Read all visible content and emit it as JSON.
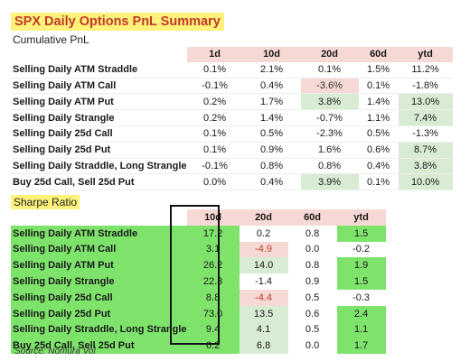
{
  "title": "SPX Daily Options PnL Summary",
  "subtitle": "Cumulative PnL",
  "sharpe_title": "Sharpe Ratio",
  "source": "Source: Nomura Vol",
  "chart_data": [
    {
      "type": "table",
      "title": "Cumulative PnL",
      "columns": [
        "",
        "1d",
        "10d",
        "20d",
        "60d",
        "ytd"
      ],
      "rows": [
        [
          "Selling Daily ATM Straddle",
          "0.1%",
          "2.1%",
          "0.1%",
          "1.5%",
          "11.2%"
        ],
        [
          "Selling Daily ATM Call",
          "-0.1%",
          "0.4%",
          "-3.6%",
          "0.1%",
          "-1.8%"
        ],
        [
          "Selling Daily ATM Put",
          "0.2%",
          "1.7%",
          "3.8%",
          "1.4%",
          "13.0%"
        ],
        [
          "Selling Daily Strangle",
          "0.2%",
          "1.4%",
          "-0.7%",
          "1.1%",
          "7.4%"
        ],
        [
          "Selling Daily 25d Call",
          "0.1%",
          "0.5%",
          "-2.3%",
          "0.5%",
          "-1.3%"
        ],
        [
          "Selling Daily 25d Put",
          "0.1%",
          "0.9%",
          "1.6%",
          "0.6%",
          "8.7%"
        ],
        [
          "Selling Daily Straddle, Long Strangle",
          "-0.1%",
          "0.8%",
          "0.8%",
          "0.4%",
          "3.8%"
        ],
        [
          "Buy 25d Call, Sell 25d Put",
          "0.0%",
          "0.4%",
          "3.9%",
          "0.1%",
          "10.0%"
        ]
      ],
      "cell_fill": [
        [
          "",
          "",
          "",
          "",
          ""
        ],
        [
          "",
          "",
          "neg",
          "",
          ""
        ],
        [
          "",
          "",
          "pos",
          "",
          "pos"
        ],
        [
          "",
          "",
          "",
          "",
          "pos"
        ],
        [
          "",
          "",
          "",
          "",
          ""
        ],
        [
          "",
          "",
          "",
          "",
          "pos"
        ],
        [
          "",
          "",
          "",
          "",
          "pos"
        ],
        [
          "",
          "",
          "pos",
          "",
          "pos"
        ]
      ]
    },
    {
      "type": "table",
      "title": "Sharpe Ratio",
      "columns": [
        "",
        "10d",
        "20d",
        "60d",
        "ytd"
      ],
      "rows": [
        [
          "Selling Daily ATM Straddle",
          "17.2",
          "0.2",
          "0.8",
          "1.5"
        ],
        [
          "Selling Daily ATM Call",
          "3.1",
          "-4.9",
          "0.0",
          "-0.2"
        ],
        [
          "Selling Daily ATM Put",
          "26.2",
          "14.0",
          "0.8",
          "1.9"
        ],
        [
          "Selling Daily Strangle",
          "22.3",
          "-1.4",
          "0.9",
          "1.5"
        ],
        [
          "Selling Daily 25d Call",
          "8.8",
          "-4.4",
          "0.5",
          "-0.3"
        ],
        [
          "Selling Daily 25d Put",
          "73.0",
          "13.5",
          "0.6",
          "2.4"
        ],
        [
          "Selling Daily Straddle, Long Strangle",
          "9.4",
          "4.1",
          "0.5",
          "1.1"
        ],
        [
          "Buy 25d Call, Sell 25d Put",
          "6.2",
          "6.8",
          "0.0",
          "1.7"
        ]
      ],
      "cell_fill": [
        [
          "g",
          "",
          "",
          "g"
        ],
        [
          "g",
          "pk",
          "",
          ""
        ],
        [
          "g",
          "lg",
          "",
          "g"
        ],
        [
          "g",
          "",
          "",
          "g"
        ],
        [
          "g",
          "pk",
          "",
          ""
        ],
        [
          "g",
          "lg",
          "",
          "g"
        ],
        [
          "g",
          "lg",
          "",
          "g"
        ],
        [
          "g",
          "lg",
          "",
          "g"
        ]
      ],
      "highlighted_column": "10d",
      "colors": {
        "strong_green": "#7ee36b",
        "light_green": "#d7ecd2",
        "light_red": "#f6d9d4",
        "negative_text": "#c0392b",
        "title_highlight": "#fff27a"
      }
    }
  ]
}
